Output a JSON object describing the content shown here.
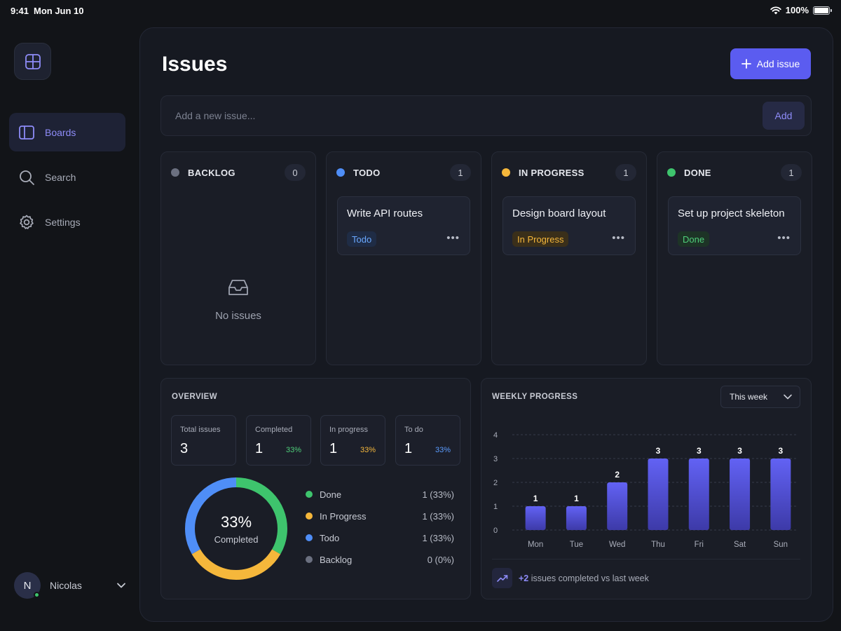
{
  "status_bar": {
    "time": "9:41",
    "date": "Mon Jun 10",
    "battery": "100%"
  },
  "sidebar": {
    "items": [
      {
        "label": "Boards",
        "icon": "columns-icon",
        "active": true
      },
      {
        "label": "Search",
        "icon": "search-icon",
        "active": false
      },
      {
        "label": "Settings",
        "icon": "gear-icon",
        "active": false
      }
    ],
    "user": {
      "initial": "N",
      "name": "Nicolas",
      "status_color": "#3ec46d"
    }
  },
  "header": {
    "title": "Issues",
    "add_issue_label": "Add issue"
  },
  "new_issue": {
    "placeholder": "Add a new issue...",
    "add_label": "Add"
  },
  "columns": [
    {
      "title": "BACKLOG",
      "count": "0",
      "color": "#6b7080",
      "empty_text": "No issues",
      "cards": []
    },
    {
      "title": "TODO",
      "count": "1",
      "color": "#4f8ef7",
      "cards": [
        {
          "title": "Write API routes",
          "badge": "Todo",
          "badge_color": "#6aa8ff",
          "badge_bg": "#1f2c45"
        }
      ]
    },
    {
      "title": "IN PROGRESS",
      "count": "1",
      "color": "#f5b73b",
      "cards": [
        {
          "title": "Design board layout",
          "badge": "In Progress",
          "badge_color": "#f5b73b",
          "badge_bg": "#3a2f1a"
        }
      ]
    },
    {
      "title": "DONE",
      "count": "1",
      "color": "#3ec46d",
      "cards": [
        {
          "title": "Set up project skeleton",
          "badge": "Done",
          "badge_color": "#4fcf7a",
          "badge_bg": "#1d3326"
        }
      ]
    }
  ],
  "overview": {
    "title": "OVERVIEW",
    "stats": [
      {
        "label": "Total issues",
        "value": "3",
        "pct": "",
        "color": ""
      },
      {
        "label": "Completed",
        "value": "1",
        "pct": "33%",
        "color": "#4fcf7a"
      },
      {
        "label": "In progress",
        "value": "1",
        "pct": "33%",
        "color": "#f5b73b"
      },
      {
        "label": "To do",
        "value": "1",
        "pct": "33%",
        "color": "#5b9cff"
      }
    ],
    "donut": {
      "pct": "33%",
      "label": "Completed"
    },
    "legend": [
      {
        "name": "Done",
        "value": "1 (33%)",
        "color": "#3ec46d"
      },
      {
        "name": "In Progress",
        "value": "1 (33%)",
        "color": "#f5b73b"
      },
      {
        "name": "Todo",
        "value": "1 (33%)",
        "color": "#4f8ef7"
      },
      {
        "name": "Backlog",
        "value": "0 (0%)",
        "color": "#6b7080"
      }
    ]
  },
  "weekly": {
    "title": "WEEKLY PROGRESS",
    "range_label": "This week",
    "trend_value": "+2",
    "trend_text": "issues completed vs last week"
  },
  "chart_data": [
    {
      "type": "pie",
      "categories": [
        "Done",
        "In Progress",
        "Todo",
        "Backlog"
      ],
      "values": [
        1,
        1,
        1,
        0
      ],
      "colors": [
        "#3ec46d",
        "#f5b73b",
        "#4f8ef7",
        "#6b7080"
      ],
      "title": ""
    },
    {
      "type": "bar",
      "categories": [
        "Mon",
        "Tue",
        "Wed",
        "Thu",
        "Fri",
        "Sat",
        "Sun"
      ],
      "values": [
        1,
        1,
        2,
        3,
        3,
        3,
        3
      ],
      "yticks": [
        0,
        1,
        2,
        3,
        4
      ],
      "ylim": [
        0,
        4
      ],
      "grid": true,
      "bar_color": "#5b5cf0",
      "title": "",
      "xlabel": "",
      "ylabel": ""
    }
  ]
}
